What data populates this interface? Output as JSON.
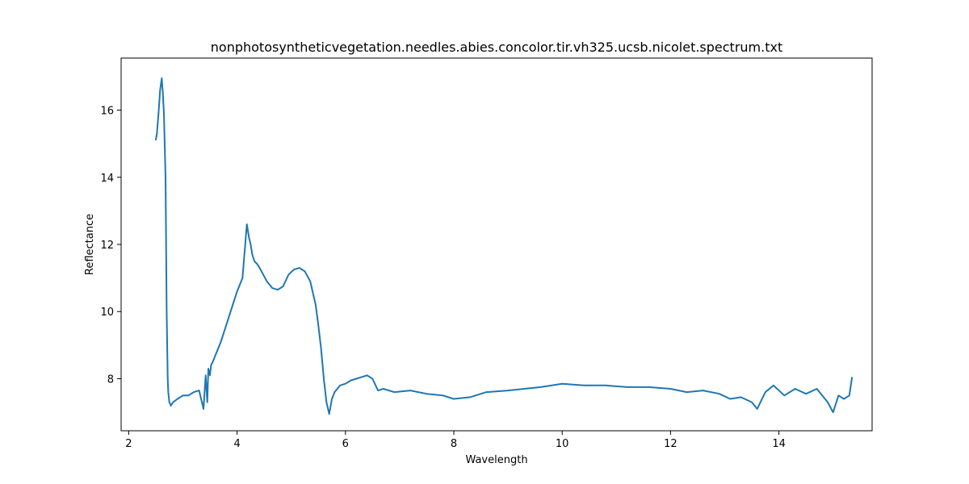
{
  "chart_data": {
    "type": "line",
    "title": "nonphotosyntheticvegetation.needles.abies.concolor.tir.vh325.ucsb.nicolet.spectrum.txt",
    "xlabel": "Wavelength",
    "ylabel": "Reflectance",
    "xlim": [
      1.86,
      15.72
    ],
    "ylim": [
      6.45,
      17.55
    ],
    "xticks": [
      2,
      4,
      6,
      8,
      10,
      12,
      14
    ],
    "yticks": [
      8,
      10,
      12,
      14,
      16
    ],
    "grid": false,
    "series": [
      {
        "color": "#1f77b4",
        "x": [
          2.5,
          2.52,
          2.55,
          2.58,
          2.61,
          2.63,
          2.65,
          2.68,
          2.7,
          2.72,
          2.73,
          2.75,
          2.78,
          2.82,
          2.9,
          3.0,
          3.1,
          3.2,
          3.3,
          3.38,
          3.42,
          3.45,
          3.47,
          3.5,
          3.52,
          3.55,
          3.6,
          3.7,
          3.8,
          3.9,
          4.0,
          4.1,
          4.18,
          4.22,
          4.25,
          4.28,
          4.32,
          4.38,
          4.45,
          4.55,
          4.65,
          4.75,
          4.85,
          4.95,
          5.05,
          5.15,
          5.25,
          5.35,
          5.45,
          5.5,
          5.55,
          5.6,
          5.65,
          5.7,
          5.75,
          5.8,
          5.9,
          6.0,
          6.1,
          6.2,
          6.3,
          6.4,
          6.5,
          6.6,
          6.7,
          6.9,
          7.2,
          7.5,
          7.8,
          8.0,
          8.3,
          8.6,
          9.0,
          9.3,
          9.6,
          10.0,
          10.4,
          10.8,
          11.2,
          11.6,
          12.0,
          12.3,
          12.6,
          12.9,
          13.1,
          13.3,
          13.5,
          13.6,
          13.75,
          13.9,
          14.1,
          14.3,
          14.5,
          14.7,
          14.9,
          15.0,
          15.1,
          15.2,
          15.3,
          15.35
        ],
        "y": [
          15.1,
          15.3,
          15.9,
          16.6,
          16.95,
          16.5,
          15.9,
          14.0,
          10.0,
          8.0,
          7.6,
          7.3,
          7.2,
          7.3,
          7.4,
          7.5,
          7.5,
          7.6,
          7.65,
          7.1,
          8.1,
          7.3,
          8.3,
          8.1,
          8.4,
          8.5,
          8.7,
          9.1,
          9.6,
          10.1,
          10.6,
          11.0,
          12.6,
          12.2,
          12.0,
          11.7,
          11.5,
          11.4,
          11.2,
          10.9,
          10.7,
          10.65,
          10.75,
          11.1,
          11.25,
          11.3,
          11.2,
          10.9,
          10.2,
          9.6,
          8.9,
          8.0,
          7.3,
          6.95,
          7.4,
          7.6,
          7.8,
          7.85,
          7.95,
          8.0,
          8.05,
          8.1,
          8.0,
          7.65,
          7.7,
          7.6,
          7.65,
          7.55,
          7.5,
          7.4,
          7.45,
          7.6,
          7.65,
          7.7,
          7.75,
          7.85,
          7.8,
          7.8,
          7.75,
          7.75,
          7.7,
          7.6,
          7.65,
          7.55,
          7.4,
          7.45,
          7.3,
          7.1,
          7.6,
          7.8,
          7.5,
          7.7,
          7.55,
          7.7,
          7.3,
          7.0,
          7.5,
          7.4,
          7.5,
          8.05
        ]
      }
    ]
  }
}
